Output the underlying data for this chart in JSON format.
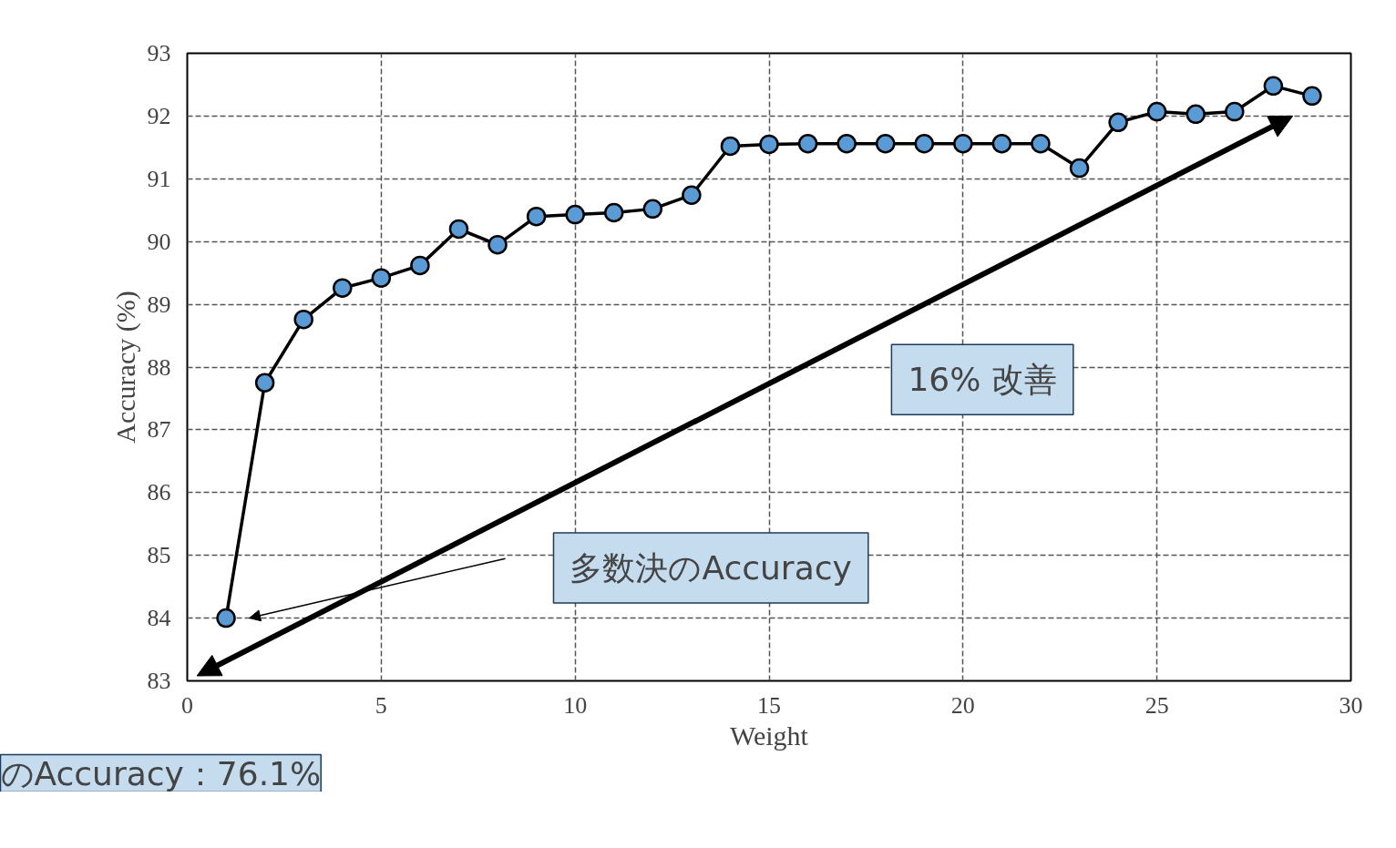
{
  "chart_data": {
    "type": "line",
    "xlabel": "Weight",
    "ylabel": "Accuracy (%)",
    "x": [
      1,
      2,
      3,
      4,
      5,
      6,
      7,
      8,
      9,
      10,
      11,
      12,
      13,
      14,
      15,
      16,
      17,
      18,
      19,
      20,
      21,
      22,
      23,
      24,
      25,
      26,
      27,
      28,
      29
    ],
    "series": [
      {
        "color": "#000000",
        "values": [
          84.0,
          87.75,
          88.76,
          89.26,
          89.42,
          89.62,
          90.2,
          89.95,
          90.4,
          90.43,
          90.46,
          90.52,
          90.74,
          91.52,
          91.55,
          91.56,
          91.56,
          91.56,
          91.56,
          91.56,
          91.56,
          91.56,
          91.17,
          91.9,
          92.07,
          92.03,
          92.07,
          92.48,
          92.32
        ]
      }
    ],
    "marker": "circle",
    "line_style": "solid",
    "grid": true,
    "xlim": [
      0,
      30
    ],
    "xticks": [
      0,
      5,
      10,
      15,
      20,
      25,
      30
    ],
    "ylim": [
      83,
      93
    ],
    "yticks": [
      83,
      84,
      85,
      86,
      87,
      88,
      89,
      90,
      91,
      92,
      93
    ],
    "annotations": [
      "16% 改善",
      "多数決のAccuracy",
      "のAccuracy：76.1%"
    ]
  }
}
